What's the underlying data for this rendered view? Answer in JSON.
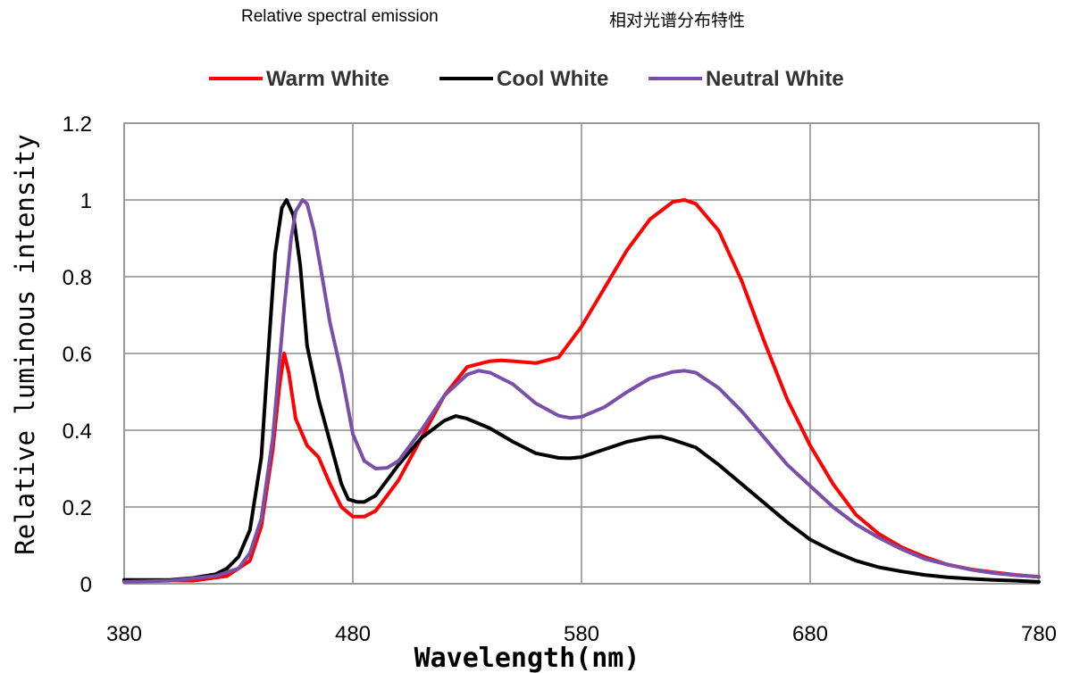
{
  "header": {
    "title_en": "Relative spectral emission",
    "title_zh": "相对光谱分布特性"
  },
  "chart_data": {
    "type": "line",
    "xlabel": "Wavelength(nm)",
    "ylabel": "Relative luminous intensity",
    "xlim": [
      380,
      780
    ],
    "ylim": [
      0,
      1.2
    ],
    "x_ticks": [
      "380",
      "480",
      "580",
      "680",
      "780"
    ],
    "y_ticks": [
      "0",
      "0.2",
      "0.4",
      "0.6",
      "0.8",
      "1",
      "1.2"
    ],
    "grid": true,
    "legend_position": "top",
    "series": [
      {
        "name": "Warm White",
        "color": "#ff0000",
        "points": [
          [
            380,
            0.01
          ],
          [
            410,
            0.008
          ],
          [
            425,
            0.02
          ],
          [
            435,
            0.06
          ],
          [
            440,
            0.15
          ],
          [
            445,
            0.35
          ],
          [
            448,
            0.52
          ],
          [
            450,
            0.6
          ],
          [
            452,
            0.55
          ],
          [
            455,
            0.43
          ],
          [
            460,
            0.36
          ],
          [
            465,
            0.33
          ],
          [
            470,
            0.26
          ],
          [
            475,
            0.2
          ],
          [
            480,
            0.175
          ],
          [
            485,
            0.175
          ],
          [
            490,
            0.19
          ],
          [
            500,
            0.27
          ],
          [
            510,
            0.38
          ],
          [
            520,
            0.49
          ],
          [
            530,
            0.565
          ],
          [
            540,
            0.58
          ],
          [
            545,
            0.582
          ],
          [
            550,
            0.58
          ],
          [
            560,
            0.575
          ],
          [
            570,
            0.59
          ],
          [
            580,
            0.67
          ],
          [
            590,
            0.77
          ],
          [
            600,
            0.87
          ],
          [
            610,
            0.95
          ],
          [
            620,
            0.995
          ],
          [
            625,
            1.0
          ],
          [
            630,
            0.99
          ],
          [
            640,
            0.92
          ],
          [
            650,
            0.79
          ],
          [
            660,
            0.63
          ],
          [
            670,
            0.48
          ],
          [
            680,
            0.36
          ],
          [
            690,
            0.26
          ],
          [
            700,
            0.18
          ],
          [
            710,
            0.13
          ],
          [
            720,
            0.095
          ],
          [
            730,
            0.07
          ],
          [
            740,
            0.05
          ],
          [
            750,
            0.038
          ],
          [
            760,
            0.03
          ],
          [
            770,
            0.023
          ],
          [
            780,
            0.018
          ]
        ]
      },
      {
        "name": "Cool White",
        "color": "#000000",
        "points": [
          [
            380,
            0.01
          ],
          [
            400,
            0.01
          ],
          [
            410,
            0.015
          ],
          [
            420,
            0.025
          ],
          [
            425,
            0.04
          ],
          [
            430,
            0.07
          ],
          [
            435,
            0.14
          ],
          [
            440,
            0.33
          ],
          [
            443,
            0.6
          ],
          [
            446,
            0.86
          ],
          [
            449,
            0.98
          ],
          [
            451,
            1.0
          ],
          [
            454,
            0.96
          ],
          [
            457,
            0.83
          ],
          [
            460,
            0.62
          ],
          [
            465,
            0.48
          ],
          [
            470,
            0.37
          ],
          [
            475,
            0.26
          ],
          [
            478,
            0.22
          ],
          [
            482,
            0.213
          ],
          [
            485,
            0.213
          ],
          [
            490,
            0.23
          ],
          [
            495,
            0.27
          ],
          [
            500,
            0.31
          ],
          [
            510,
            0.38
          ],
          [
            520,
            0.425
          ],
          [
            525,
            0.437
          ],
          [
            530,
            0.43
          ],
          [
            540,
            0.405
          ],
          [
            550,
            0.37
          ],
          [
            560,
            0.34
          ],
          [
            570,
            0.328
          ],
          [
            575,
            0.327
          ],
          [
            580,
            0.33
          ],
          [
            590,
            0.35
          ],
          [
            600,
            0.37
          ],
          [
            610,
            0.382
          ],
          [
            615,
            0.383
          ],
          [
            620,
            0.375
          ],
          [
            630,
            0.355
          ],
          [
            640,
            0.31
          ],
          [
            650,
            0.26
          ],
          [
            660,
            0.21
          ],
          [
            670,
            0.16
          ],
          [
            680,
            0.115
          ],
          [
            690,
            0.085
          ],
          [
            700,
            0.06
          ],
          [
            710,
            0.043
          ],
          [
            720,
            0.032
          ],
          [
            730,
            0.023
          ],
          [
            740,
            0.017
          ],
          [
            750,
            0.013
          ],
          [
            760,
            0.01
          ],
          [
            770,
            0.008
          ],
          [
            780,
            0.005
          ]
        ]
      },
      {
        "name": "Neutral White",
        "color": "#7a4fa8",
        "points": [
          [
            380,
            0.005
          ],
          [
            400,
            0.008
          ],
          [
            420,
            0.02
          ],
          [
            430,
            0.04
          ],
          [
            435,
            0.08
          ],
          [
            440,
            0.17
          ],
          [
            445,
            0.38
          ],
          [
            450,
            0.72
          ],
          [
            453,
            0.9
          ],
          [
            455,
            0.97
          ],
          [
            458,
            1.0
          ],
          [
            460,
            0.99
          ],
          [
            463,
            0.92
          ],
          [
            466,
            0.82
          ],
          [
            470,
            0.68
          ],
          [
            475,
            0.55
          ],
          [
            480,
            0.39
          ],
          [
            485,
            0.32
          ],
          [
            490,
            0.3
          ],
          [
            495,
            0.302
          ],
          [
            500,
            0.32
          ],
          [
            510,
            0.4
          ],
          [
            520,
            0.49
          ],
          [
            530,
            0.545
          ],
          [
            535,
            0.555
          ],
          [
            540,
            0.55
          ],
          [
            550,
            0.52
          ],
          [
            560,
            0.47
          ],
          [
            570,
            0.438
          ],
          [
            575,
            0.432
          ],
          [
            580,
            0.435
          ],
          [
            590,
            0.46
          ],
          [
            600,
            0.5
          ],
          [
            610,
            0.535
          ],
          [
            620,
            0.552
          ],
          [
            625,
            0.555
          ],
          [
            630,
            0.55
          ],
          [
            640,
            0.51
          ],
          [
            650,
            0.45
          ],
          [
            660,
            0.38
          ],
          [
            670,
            0.31
          ],
          [
            680,
            0.255
          ],
          [
            690,
            0.2
          ],
          [
            700,
            0.155
          ],
          [
            710,
            0.12
          ],
          [
            720,
            0.09
          ],
          [
            730,
            0.065
          ],
          [
            740,
            0.05
          ],
          [
            750,
            0.037
          ],
          [
            760,
            0.028
          ],
          [
            770,
            0.022
          ],
          [
            780,
            0.018
          ]
        ]
      }
    ]
  }
}
